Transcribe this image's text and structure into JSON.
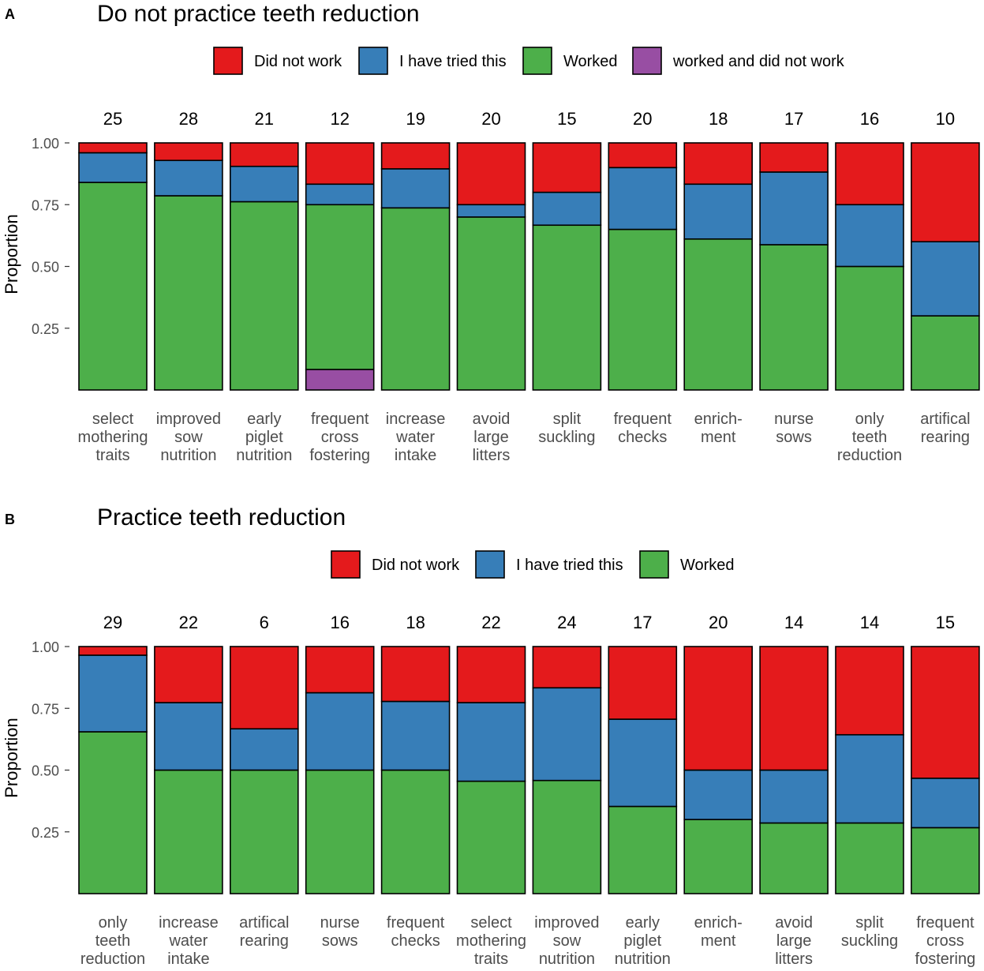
{
  "chart_data": [
    {
      "type": "bar",
      "stacked": true,
      "panel_label": "A",
      "title": "Do not practice teeth reduction",
      "ylabel": "Proportion",
      "ylim": [
        0,
        1
      ],
      "yticks": [
        "0.25",
        "0.50",
        "0.75",
        "1.00"
      ],
      "legend": [
        {
          "name": "Did not work",
          "color": "#e41a1c"
        },
        {
          "name": "I have tried this",
          "color": "#377eb8"
        },
        {
          "name": "Worked",
          "color": "#4daf4a"
        },
        {
          "name": "worked and did not work",
          "color": "#984ea3"
        }
      ],
      "categories": [
        "select mothering traits",
        "improved sow nutrition",
        "early piglet nutrition",
        "frequent cross fostering",
        "increase water intake",
        "avoid large litters",
        "split suckling",
        "frequent checks",
        "enrich- ment",
        "nurse sows",
        "only teeth reduction",
        "artifical rearing"
      ],
      "category_lines": [
        [
          "select",
          "mothering",
          "traits"
        ],
        [
          "improved",
          "sow",
          "nutrition"
        ],
        [
          "early",
          "piglet",
          "nutrition"
        ],
        [
          "frequent",
          "cross",
          "fostering"
        ],
        [
          "increase",
          "water",
          "intake"
        ],
        [
          "avoid",
          "large",
          "litters"
        ],
        [
          "split",
          "suckling"
        ],
        [
          "frequent",
          "checks"
        ],
        [
          "enrich-",
          "ment"
        ],
        [
          "nurse",
          "sows"
        ],
        [
          "only",
          "teeth",
          "reduction"
        ],
        [
          "artifical",
          "rearing"
        ]
      ],
      "counts": [
        "25",
        "28",
        "21",
        "12",
        "19",
        "20",
        "15",
        "20",
        "18",
        "17",
        "16",
        "10"
      ],
      "series": [
        {
          "name": "worked and did not work",
          "color": "#984ea3",
          "values": [
            0,
            0,
            0,
            0.083,
            0,
            0,
            0,
            0,
            0,
            0,
            0,
            0
          ]
        },
        {
          "name": "Worked",
          "color": "#4daf4a",
          "values": [
            0.84,
            0.786,
            0.762,
            0.667,
            0.737,
            0.7,
            0.667,
            0.65,
            0.611,
            0.588,
            0.5,
            0.3
          ]
        },
        {
          "name": "I have tried this",
          "color": "#377eb8",
          "values": [
            0.12,
            0.143,
            0.143,
            0.083,
            0.158,
            0.05,
            0.133,
            0.25,
            0.222,
            0.294,
            0.25,
            0.3
          ]
        },
        {
          "name": "Did not work",
          "color": "#e41a1c",
          "values": [
            0.04,
            0.071,
            0.095,
            0.167,
            0.105,
            0.25,
            0.2,
            0.1,
            0.167,
            0.118,
            0.25,
            0.4
          ]
        }
      ]
    },
    {
      "type": "bar",
      "stacked": true,
      "panel_label": "B",
      "title": "Practice teeth reduction",
      "ylabel": "Proportion",
      "ylim": [
        0,
        1
      ],
      "yticks": [
        "0.25",
        "0.50",
        "0.75",
        "1.00"
      ],
      "legend": [
        {
          "name": "Did not work",
          "color": "#e41a1c"
        },
        {
          "name": "I have tried this",
          "color": "#377eb8"
        },
        {
          "name": "Worked",
          "color": "#4daf4a"
        }
      ],
      "categories": [
        "only teeth reduction",
        "increase water intake",
        "artifical rearing",
        "nurse sows",
        "frequent checks",
        "select mothering traits",
        "improved sow nutrition",
        "early piglet nutrition",
        "enrich- ment",
        "avoid large litters",
        "split suckling",
        "frequent cross fostering"
      ],
      "category_lines": [
        [
          "only",
          "teeth",
          "reduction"
        ],
        [
          "increase",
          "water",
          "intake"
        ],
        [
          "artifical",
          "rearing"
        ],
        [
          "nurse",
          "sows"
        ],
        [
          "frequent",
          "checks"
        ],
        [
          "select",
          "mothering",
          "traits"
        ],
        [
          "improved",
          "sow",
          "nutrition"
        ],
        [
          "early",
          "piglet",
          "nutrition"
        ],
        [
          "enrich-",
          "ment"
        ],
        [
          "avoid",
          "large",
          "litters"
        ],
        [
          "split",
          "suckling"
        ],
        [
          "frequent",
          "cross",
          "fostering"
        ]
      ],
      "counts": [
        "29",
        "22",
        "6",
        "16",
        "18",
        "22",
        "24",
        "17",
        "20",
        "14",
        "14",
        "15"
      ],
      "series": [
        {
          "name": "Worked",
          "color": "#4daf4a",
          "values": [
            0.655,
            0.5,
            0.5,
            0.5,
            0.5,
            0.455,
            0.458,
            0.353,
            0.3,
            0.286,
            0.286,
            0.267
          ]
        },
        {
          "name": "I have tried this",
          "color": "#377eb8",
          "values": [
            0.31,
            0.273,
            0.167,
            0.313,
            0.278,
            0.318,
            0.375,
            0.353,
            0.2,
            0.214,
            0.357,
            0.2
          ]
        },
        {
          "name": "Did not work",
          "color": "#e41a1c",
          "values": [
            0.035,
            0.227,
            0.333,
            0.187,
            0.222,
            0.227,
            0.167,
            0.294,
            0.5,
            0.5,
            0.357,
            0.533
          ]
        }
      ]
    }
  ]
}
